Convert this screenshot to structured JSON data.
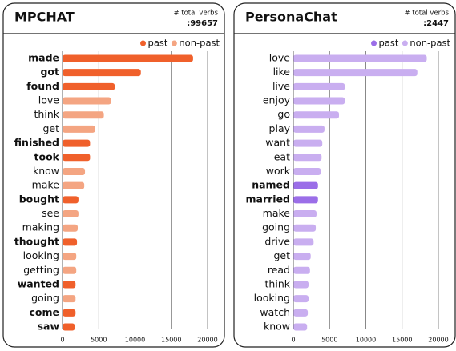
{
  "chart_data": [
    {
      "type": "barh",
      "title": "MPCHAT",
      "total_label": "# total verbs",
      "total": ":99657",
      "categories": [
        "made",
        "got",
        "found",
        "love",
        "think",
        "get",
        "finished",
        "took",
        "know",
        "make",
        "bought",
        "see",
        "making",
        "thought",
        "looking",
        "getting",
        "wanted",
        "going",
        "come",
        "saw"
      ],
      "series": [
        {
          "name": "past",
          "color": "#f0602b",
          "values": [
            18000,
            10800,
            7200,
            null,
            null,
            null,
            3800,
            3800,
            null,
            null,
            2200,
            null,
            null,
            2000,
            null,
            null,
            1800,
            null,
            1800,
            1700
          ]
        },
        {
          "name": "non-past",
          "color": "#f4a582",
          "values": [
            null,
            null,
            null,
            6700,
            5700,
            4500,
            null,
            null,
            3100,
            3000,
            null,
            2200,
            2100,
            null,
            1900,
            1900,
            null,
            1800,
            null,
            null
          ]
        }
      ],
      "xlim": [
        0,
        20000
      ],
      "xticks": [
        0,
        5000,
        10000,
        15000,
        20000
      ],
      "grid": true,
      "legend": "top-right"
    },
    {
      "type": "barh",
      "title": "PersonaChat",
      "total_label": "# total verbs",
      "total": ":2447",
      "categories": [
        "love",
        "like",
        "live",
        "enjoy",
        "go",
        "play",
        "want",
        "eat",
        "work",
        "named",
        "married",
        "make",
        "going",
        "drive",
        "get",
        "read",
        "think",
        "looking",
        "watch",
        "know"
      ],
      "series": [
        {
          "name": "past",
          "color": "#9b6ee8",
          "values": [
            null,
            null,
            null,
            null,
            null,
            null,
            null,
            null,
            null,
            3400,
            3400,
            null,
            null,
            null,
            null,
            null,
            null,
            null,
            null,
            null
          ]
        },
        {
          "name": "non-past",
          "color": "#c9aef0",
          "values": [
            18400,
            17100,
            7100,
            7100,
            6300,
            4300,
            4000,
            3900,
            3800,
            null,
            null,
            3200,
            3100,
            2800,
            2400,
            2300,
            2100,
            2100,
            2000,
            1900
          ]
        }
      ],
      "xlim": [
        0,
        20000
      ],
      "xticks": [
        0,
        5000,
        10000,
        15000,
        20000
      ],
      "grid": true,
      "legend": "top-right"
    }
  ]
}
